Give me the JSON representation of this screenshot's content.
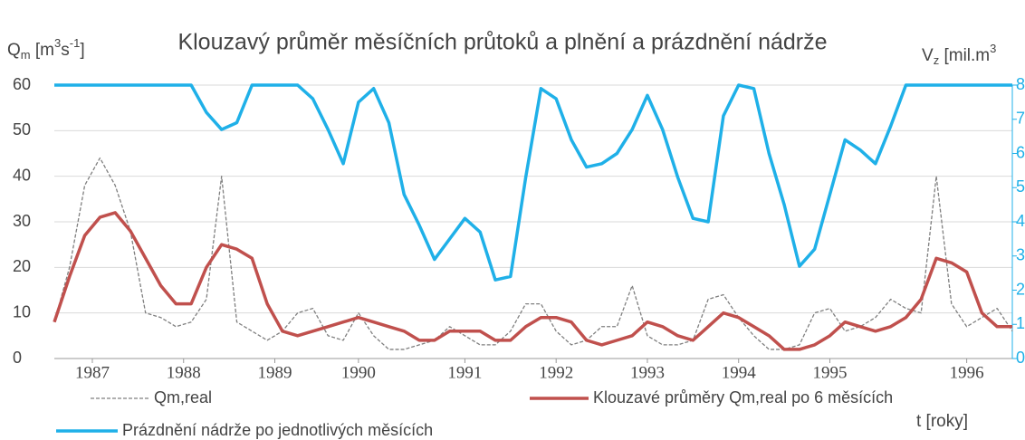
{
  "chart_data": {
    "type": "line",
    "title": "Klouzavý průměr měsíčních průtoků a plnění a prázdnění nádrže",
    "ylabel": [
      "Q",
      "m",
      " [m",
      "3",
      "s",
      "-1",
      "]"
    ],
    "y2label": [
      "V",
      "z",
      " [mil.m",
      "3"
    ],
    "xlabel": "t [roky]",
    "x": [
      0,
      2,
      4,
      6,
      8,
      10,
      12,
      14,
      16,
      18,
      20,
      22,
      24,
      26,
      28,
      30,
      32,
      34,
      36,
      38,
      40,
      42,
      44,
      46,
      48,
      50,
      52,
      54,
      56,
      58,
      60,
      62,
      64,
      66,
      68,
      70,
      72,
      74,
      76,
      78,
      80,
      82,
      84,
      86,
      88,
      90,
      92,
      94,
      96,
      98,
      100,
      102,
      104,
      106,
      108,
      110,
      112,
      114,
      116,
      118,
      120,
      122,
      124,
      126
    ],
    "xlim": [
      0,
      126
    ],
    "xticks": [
      {
        "value": 5,
        "label": "1987"
      },
      {
        "value": 17,
        "label": "1988"
      },
      {
        "value": 29,
        "label": "1989"
      },
      {
        "value": 40,
        "label": "1990"
      },
      {
        "value": 54,
        "label": "1991"
      },
      {
        "value": 66,
        "label": "1992"
      },
      {
        "value": 78,
        "label": "1993"
      },
      {
        "value": 90,
        "label": "1994"
      },
      {
        "value": 102,
        "label": "1995"
      },
      {
        "value": 120,
        "label": "1996"
      }
    ],
    "ylim": [
      0,
      60
    ],
    "yticks": [
      0,
      10,
      20,
      30,
      40,
      50,
      60
    ],
    "y2lim": [
      0,
      80
    ],
    "y2ticks": [
      0,
      10,
      20,
      30,
      40,
      50,
      60,
      70,
      80
    ],
    "grid": true,
    "series": [
      {
        "name": "Qm,real",
        "color": "#7f7f7f",
        "dashed": true,
        "values": [
          8,
          20,
          38,
          44,
          38,
          28,
          10,
          9,
          7,
          8,
          13,
          40,
          8,
          6,
          4,
          6,
          10,
          11,
          5,
          4,
          10,
          5,
          2,
          2,
          3,
          4,
          7,
          5,
          3,
          3,
          6,
          12,
          12,
          6,
          3,
          4,
          7,
          7,
          16,
          5,
          3,
          3,
          4,
          13,
          14,
          9,
          5,
          2,
          2,
          3,
          10,
          11,
          6,
          7,
          9,
          13,
          11,
          10,
          40,
          12,
          7,
          9,
          11,
          6
        ]
      },
      {
        "name": "Klouzavé průměry Qm,real po 6 měsících",
        "color": "#c0504d",
        "values": [
          8,
          18,
          27,
          31,
          32,
          28,
          22,
          16,
          12,
          12,
          20,
          25,
          24,
          22,
          12,
          6,
          5,
          6,
          7,
          8,
          9,
          8,
          7,
          6,
          4,
          4,
          6,
          6,
          6,
          4,
          4,
          7,
          9,
          9,
          8,
          4,
          3,
          4,
          5,
          8,
          7,
          5,
          4,
          7,
          10,
          9,
          7,
          5,
          2,
          2,
          3,
          5,
          8,
          7,
          6,
          7,
          9,
          13,
          22,
          21,
          19,
          10,
          7,
          7
        ]
      },
      {
        "name": "Prázdnění nádrže po jednotlivých měsících",
        "color": "#1fb0e8",
        "axis": "y2",
        "values": [
          80,
          80,
          80,
          80,
          80,
          80,
          80,
          80,
          80,
          80,
          72,
          67,
          69,
          80,
          80,
          80,
          80,
          76,
          67,
          57,
          75,
          79,
          69,
          48,
          39,
          29,
          35,
          41,
          37,
          23,
          24,
          53,
          79,
          76,
          64,
          56,
          57,
          60,
          67,
          77,
          67,
          53,
          41,
          40,
          71,
          80,
          79,
          60,
          45,
          27,
          32,
          48,
          64,
          61,
          57,
          68,
          80,
          80,
          80,
          80,
          80,
          80,
          80,
          80
        ]
      }
    ]
  }
}
